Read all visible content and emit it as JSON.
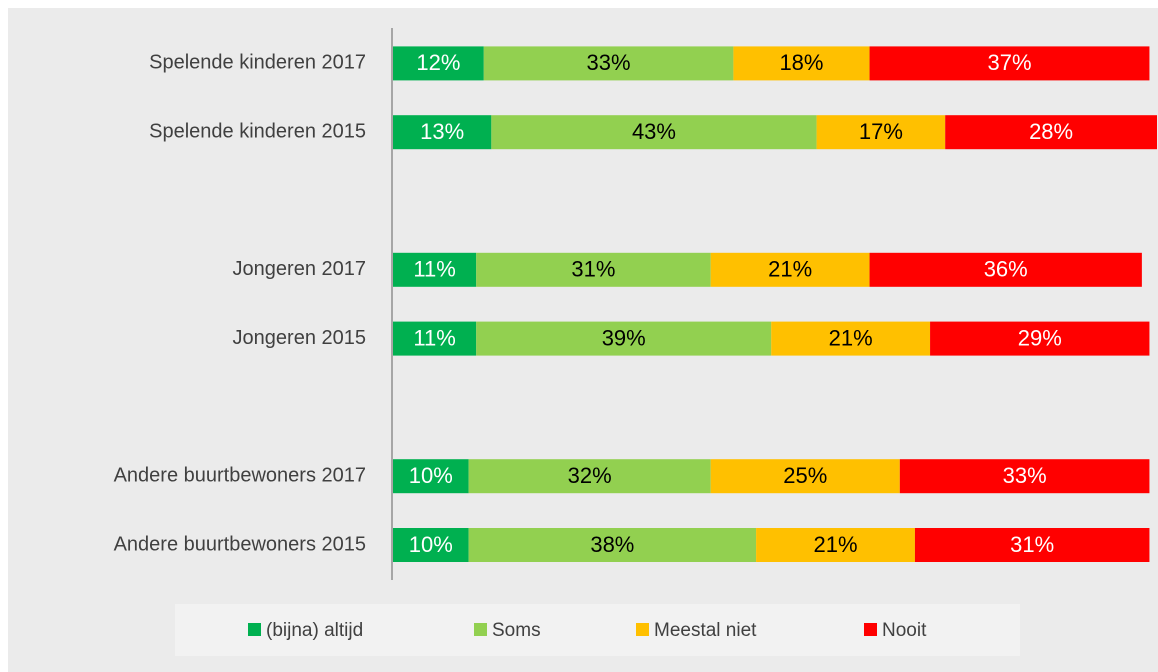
{
  "chart_data": {
    "type": "stacked-bar-horizontal",
    "categories": [
      "Spelende kinderen 2017",
      "Spelende kinderen 2015",
      null,
      "Jongeren 2017",
      "Jongeren 2015",
      null,
      "Andere buurtbewoners 2017",
      "Andere buurtbewoners 2015"
    ],
    "series": [
      {
        "name": "(bijna) altijd",
        "color": "#00b050",
        "label_color": "#ffffff",
        "values": [
          12,
          13,
          null,
          11,
          11,
          null,
          10,
          10
        ],
        "value_labels": [
          "12%",
          "13%",
          null,
          "11%",
          "11%",
          null,
          "10%",
          "10%"
        ]
      },
      {
        "name": "Soms",
        "color": "#92d050",
        "label_color": "#000000",
        "values": [
          33,
          43,
          null,
          31,
          39,
          null,
          32,
          38
        ],
        "value_labels": [
          "33%",
          "43%",
          null,
          "31%",
          "39%",
          null,
          "32%",
          "38%"
        ]
      },
      {
        "name": "Meestal niet",
        "color": "#ffc000",
        "label_color": "#000000",
        "values": [
          18,
          17,
          null,
          21,
          21,
          null,
          25,
          21
        ],
        "value_labels": [
          "18%",
          "17%",
          null,
          "21%",
          "21%",
          null,
          "25%",
          "21%"
        ]
      },
      {
        "name": "Nooit",
        "color": "#ff0000",
        "label_color": "#ffffff",
        "values": [
          37,
          28,
          null,
          36,
          29,
          null,
          33,
          31
        ],
        "value_labels": [
          "37%",
          "28%",
          null,
          "36%",
          "29%",
          null,
          "33%",
          "31%"
        ]
      }
    ],
    "legend": "bottom"
  }
}
